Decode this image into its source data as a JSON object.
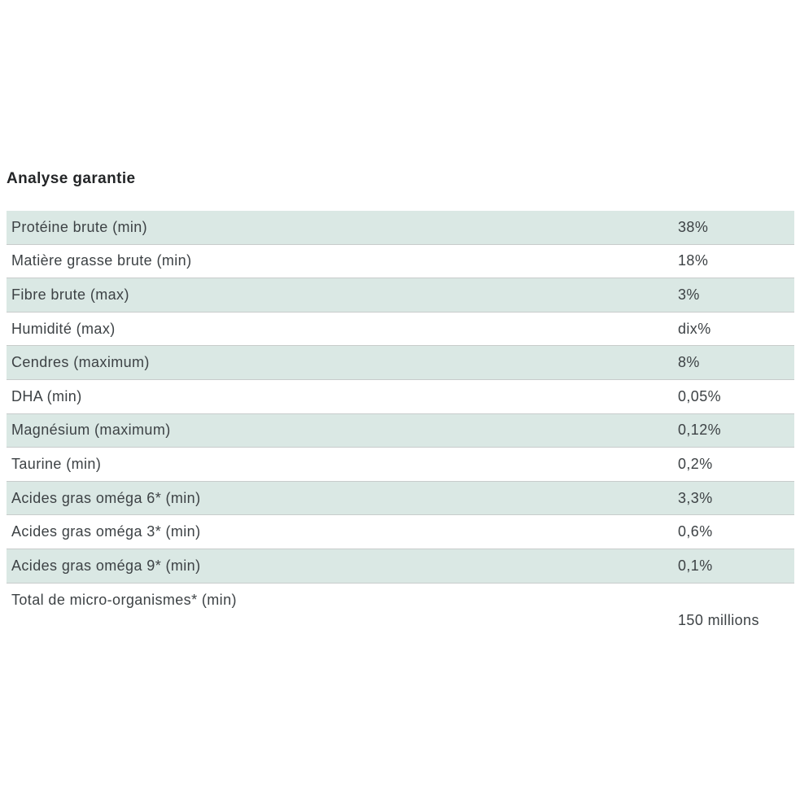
{
  "title": "Analyse garantie",
  "table": {
    "rows": [
      {
        "label": "Protéine brute (min)",
        "value": "38%"
      },
      {
        "label": "Matière grasse brute (min)",
        "value": "18%"
      },
      {
        "label": "Fibre brute (max)",
        "value": "3%"
      },
      {
        "label": "Humidité (max)",
        "value": "dix%"
      },
      {
        "label": "Cendres (maximum)",
        "value": "8%"
      },
      {
        "label": "DHA (min)",
        "value": "0,05%"
      },
      {
        "label": "Magnésium (maximum)",
        "value": "0,12%"
      },
      {
        "label": "Taurine (min)",
        "value": "0,2%"
      },
      {
        "label": "Acides gras oméga 6* (min)",
        "value": "3,3%"
      },
      {
        "label": "Acides gras oméga 3* (min)",
        "value": "0,6%"
      },
      {
        "label": "Acides gras oméga 9* (min)",
        "value": "0,1%"
      },
      {
        "label": "Total de micro-organismes* (min)",
        "value": "150 millions"
      }
    ]
  },
  "colors": {
    "stripe": "#dae8e4",
    "border": "#c8cccb",
    "text": "#3d4245",
    "title": "#232527"
  }
}
